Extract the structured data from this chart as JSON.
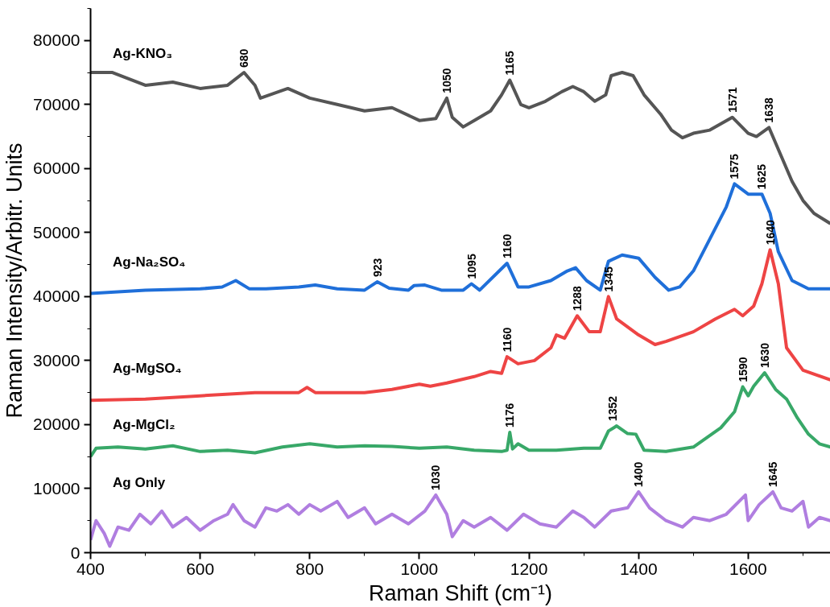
{
  "chart_data": {
    "type": "line",
    "xlabel": "Raman Shift (cm⁻¹)",
    "ylabel": "Raman Intensity/Arbitr. Units",
    "xlim": [
      400,
      1750
    ],
    "ylim": [
      0,
      85000
    ],
    "xticks": [
      400,
      600,
      800,
      1000,
      1200,
      1400,
      1600
    ],
    "yticks": [
      0,
      10000,
      20000,
      30000,
      40000,
      50000,
      60000,
      70000,
      80000
    ],
    "grid": false,
    "line_style": "solid",
    "marker": "none",
    "series": [
      {
        "name": "Ag-KNO₃",
        "color": "#555555",
        "x": [
          400,
          440,
          500,
          550,
          600,
          650,
          680,
          700,
          710,
          760,
          800,
          850,
          900,
          950,
          1000,
          1030,
          1050,
          1060,
          1080,
          1100,
          1130,
          1150,
          1165,
          1185,
          1200,
          1230,
          1260,
          1280,
          1300,
          1320,
          1340,
          1350,
          1370,
          1390,
          1410,
          1440,
          1460,
          1480,
          1500,
          1530,
          1571,
          1600,
          1615,
          1638,
          1660,
          1680,
          1700,
          1720,
          1750
        ],
        "values": [
          75000,
          75000,
          73000,
          73500,
          72500,
          73000,
          75000,
          73000,
          71000,
          72500,
          71000,
          70000,
          69000,
          69500,
          67500,
          67800,
          71000,
          68000,
          66500,
          67500,
          69000,
          71500,
          73800,
          70000,
          69500,
          70500,
          72000,
          72800,
          72000,
          70500,
          71500,
          74500,
          75000,
          74500,
          71500,
          68500,
          66000,
          64800,
          65500,
          66000,
          68000,
          65500,
          65000,
          66400,
          62000,
          58000,
          55000,
          53000,
          51400
        ]
      },
      {
        "name": "Ag-Na₂SO₄",
        "color": "#1f6fd9",
        "x": [
          400,
          500,
          600,
          640,
          665,
          690,
          720,
          780,
          810,
          850,
          900,
          923,
          945,
          980,
          990,
          1010,
          1040,
          1080,
          1095,
          1110,
          1160,
          1180,
          1200,
          1240,
          1270,
          1285,
          1305,
          1330,
          1345,
          1370,
          1400,
          1430,
          1455,
          1475,
          1500,
          1530,
          1560,
          1575,
          1600,
          1625,
          1640,
          1655,
          1680,
          1710,
          1750
        ],
        "values": [
          40500,
          41000,
          41200,
          41500,
          42500,
          41200,
          41200,
          41500,
          41800,
          41200,
          41000,
          42300,
          41300,
          41000,
          41700,
          41800,
          41000,
          41000,
          42000,
          41000,
          45200,
          41500,
          41500,
          42500,
          44000,
          44500,
          42500,
          41000,
          45500,
          46500,
          46000,
          43000,
          41000,
          41500,
          44000,
          49000,
          54000,
          57600,
          56000,
          56000,
          53000,
          47000,
          42500,
          41200,
          41200
        ]
      },
      {
        "name": "Ag-MgSO₄",
        "color": "#ee4444",
        "x": [
          400,
          500,
          600,
          700,
          780,
          795,
          810,
          900,
          950,
          1000,
          1020,
          1050,
          1100,
          1130,
          1150,
          1160,
          1180,
          1210,
          1240,
          1250,
          1265,
          1288,
          1310,
          1330,
          1345,
          1360,
          1400,
          1430,
          1450,
          1500,
          1540,
          1575,
          1590,
          1610,
          1625,
          1640,
          1655,
          1670,
          1700,
          1750
        ],
        "values": [
          23800,
          24000,
          24500,
          25000,
          25000,
          25800,
          25000,
          25000,
          25500,
          26300,
          26000,
          26500,
          27500,
          28300,
          28000,
          30600,
          29500,
          30000,
          32000,
          34000,
          33500,
          37000,
          34500,
          34500,
          40000,
          36500,
          34000,
          32500,
          33000,
          34500,
          36500,
          38000,
          37000,
          38500,
          42000,
          47300,
          42000,
          32000,
          28500,
          27000
        ]
      },
      {
        "name": "Ag-MgCl₂",
        "color": "#38a868",
        "x": [
          400,
          410,
          450,
          500,
          550,
          600,
          650,
          700,
          750,
          800,
          850,
          900,
          950,
          1000,
          1050,
          1100,
          1150,
          1160,
          1165,
          1170,
          1180,
          1200,
          1250,
          1300,
          1330,
          1345,
          1360,
          1380,
          1395,
          1410,
          1450,
          1500,
          1550,
          1575,
          1590,
          1600,
          1610,
          1630,
          1650,
          1670,
          1690,
          1710,
          1730,
          1750
        ],
        "values": [
          15000,
          16300,
          16500,
          16200,
          16700,
          15800,
          16000,
          15600,
          16500,
          17000,
          16500,
          16700,
          16600,
          16300,
          16500,
          16000,
          15800,
          16000,
          18800,
          16200,
          17000,
          16000,
          16000,
          16300,
          16300,
          19000,
          19800,
          18600,
          18500,
          16000,
          15800,
          16500,
          19500,
          22000,
          25900,
          24500,
          26000,
          28100,
          25500,
          24000,
          21000,
          18500,
          17000,
          16500
        ]
      },
      {
        "name": "Ag Only",
        "color": "#b07ee0",
        "x": [
          400,
          410,
          425,
          435,
          450,
          470,
          490,
          510,
          530,
          550,
          575,
          600,
          625,
          650,
          660,
          680,
          700,
          720,
          740,
          760,
          780,
          800,
          820,
          850,
          870,
          900,
          920,
          950,
          980,
          1010,
          1030,
          1050,
          1060,
          1080,
          1100,
          1130,
          1160,
          1190,
          1220,
          1250,
          1280,
          1300,
          1320,
          1350,
          1380,
          1400,
          1420,
          1450,
          1480,
          1500,
          1530,
          1560,
          1595,
          1600,
          1620,
          1645,
          1660,
          1680,
          1700,
          1710,
          1730,
          1750
        ],
        "values": [
          2000,
          5000,
          3000,
          1000,
          4000,
          3500,
          6000,
          4500,
          6500,
          4000,
          5500,
          3500,
          5000,
          6000,
          7500,
          5000,
          4000,
          7000,
          6500,
          7500,
          6000,
          7500,
          6500,
          8000,
          5500,
          7000,
          4500,
          6000,
          4500,
          6500,
          9000,
          6000,
          2500,
          5000,
          4000,
          5500,
          3500,
          6000,
          4500,
          4000,
          6500,
          5500,
          4000,
          6500,
          7000,
          9500,
          7000,
          5000,
          4000,
          5500,
          5000,
          6000,
          9000,
          5000,
          7500,
          9500,
          7000,
          6500,
          8000,
          4000,
          5500,
          5000
        ]
      }
    ],
    "annotations": [
      {
        "text": "680",
        "x": 680,
        "y": 75000
      },
      {
        "text": "1050",
        "x": 1050,
        "y": 71000
      },
      {
        "text": "1165",
        "x": 1165,
        "y": 73800
      },
      {
        "text": "1571",
        "x": 1571,
        "y": 68000
      },
      {
        "text": "1638",
        "x": 1638,
        "y": 66400
      },
      {
        "text": "923",
        "x": 923,
        "y": 42300
      },
      {
        "text": "1095",
        "x": 1095,
        "y": 42000
      },
      {
        "text": "1160",
        "x": 1160,
        "y": 45200
      },
      {
        "text": "1575",
        "x": 1575,
        "y": 57600
      },
      {
        "text": "1625",
        "x": 1625,
        "y": 56000
      },
      {
        "text": "1288",
        "x": 1288,
        "y": 37000
      },
      {
        "text": "1345",
        "x": 1345,
        "y": 40000
      },
      {
        "text": "1640",
        "x": 1640,
        "y": 47300
      },
      {
        "text": "1160",
        "x": 1160,
        "y": 30600
      },
      {
        "text": "1176",
        "x": 1165,
        "y": 18800
      },
      {
        "text": "1352",
        "x": 1352,
        "y": 19800
      },
      {
        "text": "1590",
        "x": 1590,
        "y": 25900
      },
      {
        "text": "1630",
        "x": 1630,
        "y": 28100
      },
      {
        "text": "1030",
        "x": 1030,
        "y": 9000
      },
      {
        "text": "1400",
        "x": 1400,
        "y": 9500
      },
      {
        "text": "1645",
        "x": 1645,
        "y": 9500
      }
    ]
  }
}
